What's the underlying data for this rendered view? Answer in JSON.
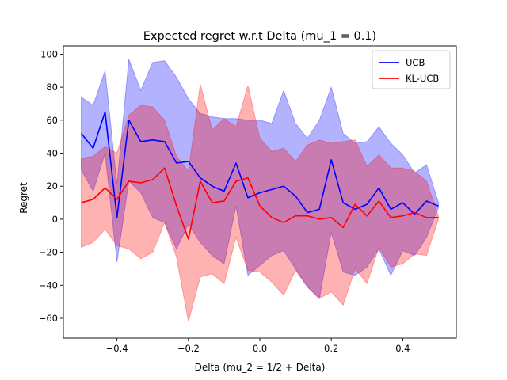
{
  "chart_data": {
    "type": "line",
    "title": "Expected regret w.r.t Delta (mu_1 = 0.1)",
    "xlabel": "Delta (mu_2 = 1/2 + Delta)",
    "ylabel": "Regret",
    "xlim": [
      -0.55,
      0.55
    ],
    "ylim": [
      -72,
      105
    ],
    "xticks": [
      -0.4,
      -0.2,
      0.0,
      0.2,
      0.4
    ],
    "xtick_labels": [
      "−0.4",
      "−0.2",
      "0.0",
      "0.2",
      "0.4"
    ],
    "yticks": [
      -60,
      -40,
      -20,
      0,
      20,
      40,
      60,
      80,
      100
    ],
    "ytick_labels": [
      "−60",
      "−40",
      "−20",
      "0",
      "20",
      "40",
      "60",
      "80",
      "100"
    ],
    "grid": false,
    "legend_position": "upper-right",
    "x": [
      -0.5,
      -0.4667,
      -0.4333,
      -0.4,
      -0.3667,
      -0.3333,
      -0.3,
      -0.2667,
      -0.2333,
      -0.2,
      -0.1667,
      -0.1333,
      -0.1,
      -0.0667,
      -0.0333,
      0.0,
      0.0333,
      0.0667,
      0.1,
      0.1333,
      0.1667,
      0.2,
      0.2333,
      0.2667,
      0.3,
      0.3333,
      0.3667,
      0.4,
      0.4333,
      0.4667,
      0.5
    ],
    "series": [
      {
        "name": "UCB",
        "color": "#0000ff",
        "values": [
          52,
          43,
          65,
          1,
          60,
          47,
          48,
          47,
          34,
          35,
          25,
          20,
          17,
          34,
          13,
          16,
          18,
          20,
          14,
          4,
          6,
          36,
          10,
          6,
          9,
          19,
          6,
          10,
          3,
          11,
          8
        ],
        "upper": [
          74,
          69,
          90,
          21,
          97,
          78,
          95,
          96,
          86,
          73,
          64,
          62,
          61,
          61,
          60,
          60,
          58,
          78,
          58,
          49,
          60,
          80,
          52,
          46,
          47,
          56,
          46,
          39,
          28,
          33,
          10
        ],
        "lower": [
          30,
          17,
          40,
          -26,
          23,
          16,
          1,
          -2,
          -18,
          -3,
          -14,
          -22,
          -27,
          8,
          -34,
          -28,
          -22,
          -19,
          -30,
          -41,
          -48,
          -8,
          -32,
          -34,
          -29,
          -18,
          -34,
          -19,
          -22,
          -11,
          7
        ]
      },
      {
        "name": "KL-UCB",
        "color": "#ff0000",
        "values": [
          10,
          12,
          19,
          12,
          23,
          22,
          24,
          31,
          8,
          -12,
          23,
          10,
          11,
          23,
          25,
          8,
          1,
          -2,
          2,
          2,
          0,
          1,
          -5,
          9,
          2,
          11,
          1,
          2,
          4,
          1,
          1
        ],
        "upper": [
          37,
          38,
          44,
          40,
          63,
          69,
          68,
          60,
          38,
          29,
          82,
          54,
          61,
          56,
          81,
          49,
          41,
          43,
          35,
          45,
          48,
          46,
          47,
          48,
          32,
          39,
          31,
          31,
          29,
          23,
          2
        ],
        "lower": [
          -17,
          -14,
          -6,
          -16,
          -18,
          -24,
          -20,
          -2,
          -23,
          -62,
          -35,
          -33,
          -39,
          -11,
          -31,
          -32,
          -38,
          -46,
          -31,
          -41,
          -48,
          -44,
          -52,
          -30,
          -39,
          -17,
          -29,
          -27,
          -21,
          -22,
          0
        ]
      }
    ]
  }
}
